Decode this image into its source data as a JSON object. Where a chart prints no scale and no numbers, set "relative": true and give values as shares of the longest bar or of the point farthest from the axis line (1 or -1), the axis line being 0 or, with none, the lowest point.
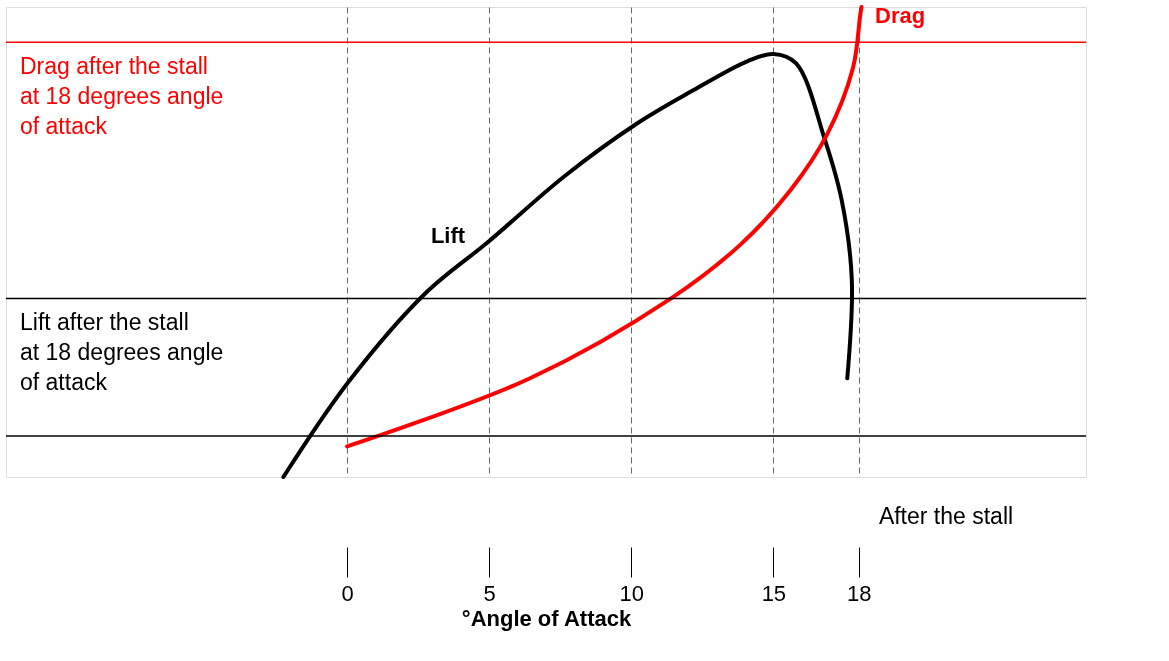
{
  "chart_data": {
    "type": "line",
    "relative": true,
    "xlabel": "°Angle of Attack",
    "xlim": [
      -12,
      26
    ],
    "xticks": [
      0,
      5,
      10,
      15,
      18
    ],
    "grid": "x",
    "legend": false,
    "marker": "none",
    "line_style": "solid",
    "series": [
      {
        "name": "Lift",
        "color": "#000000",
        "x": [
          -2.24,
          0.02,
          2.74,
          4.96,
          7.65,
          10.15,
          12.1,
          14.1,
          15.0,
          15.8,
          16.8,
          17.4,
          17.76,
          17.6
        ],
        "values": [
          0.0,
          0.2,
          0.39,
          0.5,
          0.64,
          0.75,
          0.82,
          0.885,
          0.9,
          0.88,
          0.72,
          0.59,
          0.42,
          0.21
        ]
      },
      {
        "name": "Drag",
        "color": "#ff0000",
        "x": [
          0,
          6.44,
          11.4,
          13.85,
          15.6,
          16.9,
          17.8,
          18.05,
          18.1
        ],
        "values": [
          0.065,
          0.21,
          0.38,
          0.495,
          0.61,
          0.73,
          0.87,
          0.98,
          1.0
        ]
      }
    ],
    "ref_lines": [
      {
        "axis": "y",
        "value": 0.925,
        "color": "#ff0000",
        "label": "Drag after the stall\nat 18 degrees angle\nof attack"
      },
      {
        "axis": "y",
        "value": 0.38,
        "color": "#000000",
        "label": "Lift after the stall\nat 18 degrees angle\nof attack"
      },
      {
        "axis": "y",
        "value": 0.087,
        "color": "#000000"
      }
    ],
    "annotations": [
      "After the stall"
    ]
  }
}
